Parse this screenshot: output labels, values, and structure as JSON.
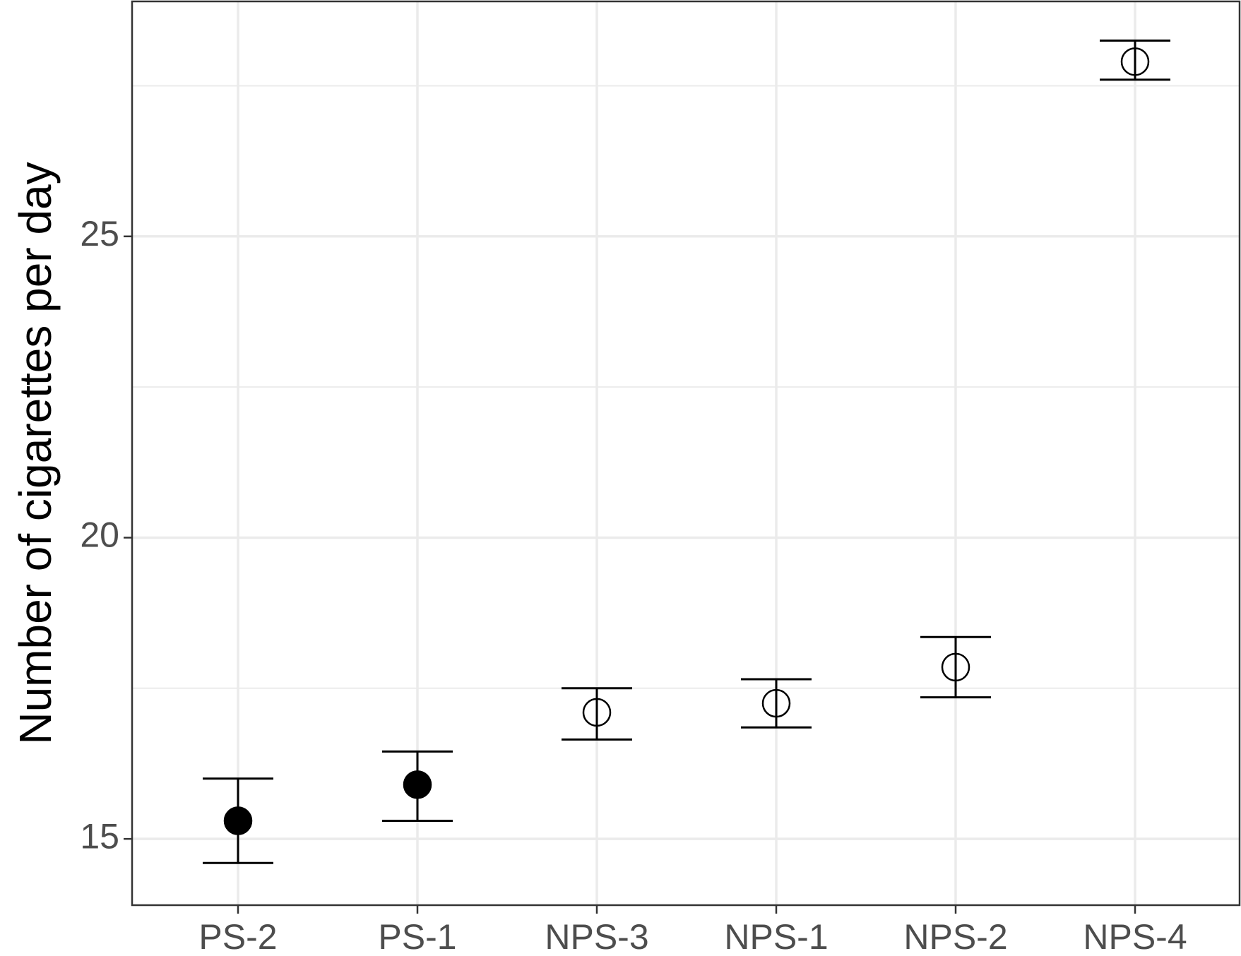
{
  "chart_data": {
    "type": "scatter",
    "subtype": "point-with-error-bars",
    "title": "",
    "xlabel": "",
    "ylabel": "Number of cigarettes per day",
    "categories": [
      "PS-2",
      "PS-1",
      "NPS-3",
      "NPS-1",
      "NPS-2",
      "NPS-4"
    ],
    "points": [
      {
        "category": "PS-2",
        "y": 15.3,
        "ymin": 14.6,
        "ymax": 16.0,
        "filled": true
      },
      {
        "category": "PS-1",
        "y": 15.9,
        "ymin": 15.3,
        "ymax": 16.45,
        "filled": true
      },
      {
        "category": "NPS-3",
        "y": 17.1,
        "ymin": 16.65,
        "ymax": 17.5,
        "filled": false
      },
      {
        "category": "NPS-1",
        "y": 17.25,
        "ymin": 16.85,
        "ymax": 17.65,
        "filled": false
      },
      {
        "category": "NPS-2",
        "y": 17.85,
        "ymin": 17.35,
        "ymax": 18.35,
        "filled": false
      },
      {
        "category": "NPS-4",
        "y": 27.9,
        "ymin": 27.6,
        "ymax": 28.25,
        "filled": false
      }
    ],
    "yticks": [
      15,
      20,
      25
    ],
    "yminor": [
      17.5,
      22.5,
      27.5
    ],
    "ylim": [
      13.9,
      28.9
    ],
    "grid": true,
    "legend": "none",
    "colors": {
      "marker": "#000000",
      "grid": "#ebebeb",
      "tick_label": "#4d4d4d",
      "panel_border": "#333333"
    }
  }
}
